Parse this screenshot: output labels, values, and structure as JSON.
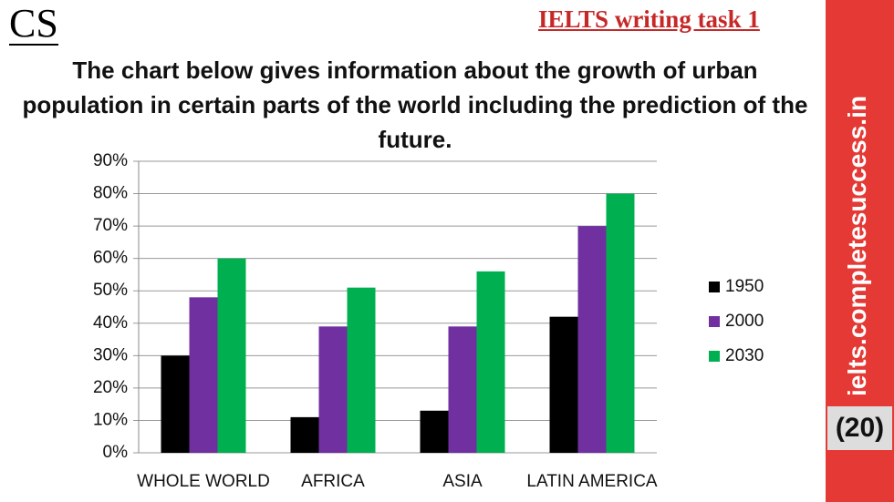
{
  "header": {
    "logo": "CS",
    "task": "IELTS writing task 1"
  },
  "sidebar": {
    "site": "ielts.completesuccess.in",
    "number": "(20)"
  },
  "chart_data": {
    "type": "bar",
    "title": "The chart below gives information about the growth of urban population in certain parts of the world including the prediction of the future.",
    "categories": [
      "WHOLE WORLD",
      "AFRICA",
      "ASIA",
      "LATIN AMERICA"
    ],
    "series": [
      {
        "name": "1950",
        "color": "#000000",
        "values": [
          30,
          11,
          13,
          42
        ]
      },
      {
        "name": "2000",
        "color": "#7030a0",
        "values": [
          48,
          39,
          39,
          70
        ]
      },
      {
        "name": "2030",
        "color": "#00b050",
        "values": [
          60,
          51,
          56,
          80
        ]
      }
    ],
    "ylim": [
      0,
      90
    ],
    "yticks": [
      {
        "value": 0,
        "label": "0%"
      },
      {
        "value": 10,
        "label": "10%"
      },
      {
        "value": 20,
        "label": "20%"
      },
      {
        "value": 30,
        "label": "30%"
      },
      {
        "value": 40,
        "label": "40%"
      },
      {
        "value": 50,
        "label": "50%"
      },
      {
        "value": 60,
        "label": "60%"
      },
      {
        "value": 70,
        "label": "70%"
      },
      {
        "value": 80,
        "label": "80%"
      },
      {
        "value": 90,
        "label": "90%"
      }
    ],
    "grid": true,
    "legend": "right"
  }
}
